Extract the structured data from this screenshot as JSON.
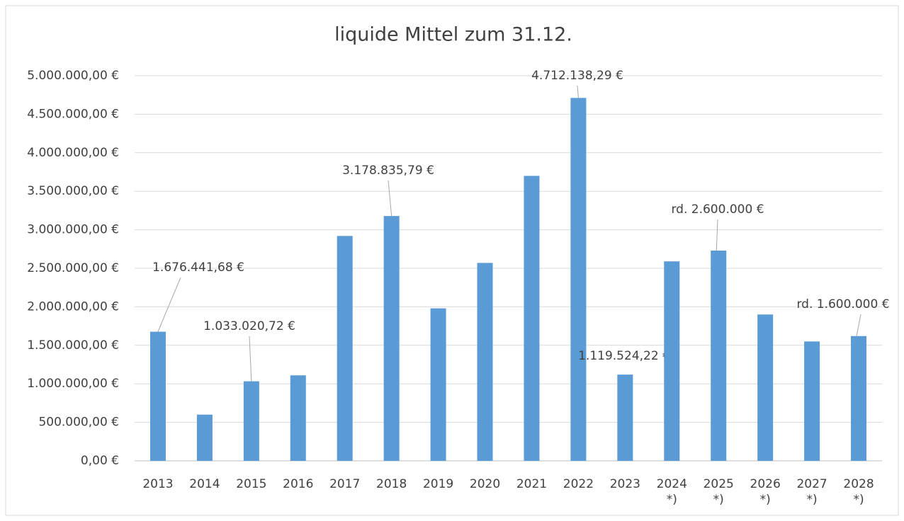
{
  "chart_data": {
    "type": "bar",
    "title": "liquide Mittel zum 31.12.",
    "categories": [
      "2013",
      "2014",
      "2015",
      "2016",
      "2017",
      "2018",
      "2019",
      "2020",
      "2021",
      "2022",
      "2023",
      "2024 *)",
      "2025 *)",
      "2026 *)",
      "2027 *)",
      "2028 *)"
    ],
    "values": [
      1676441.68,
      600000,
      1033020.72,
      1110000,
      2920000,
      3178835.79,
      1980000,
      2570000,
      3700000,
      4712138.29,
      1119524.22,
      2590000,
      2730000,
      1900000,
      1550000,
      1620000
    ],
    "value_labels": [
      "1.676.441,68 €",
      null,
      "1.033.020,72 €",
      null,
      null,
      "3.178.835,79 €",
      null,
      null,
      null,
      "4.712.138,29 €",
      "1.119.524,22 €",
      null,
      null,
      null,
      null,
      null
    ],
    "annotations": [
      {
        "text": "rd. 2.600.000 €",
        "category": "2025 *)"
      },
      {
        "text": "rd. 1.600.000 €",
        "category": "2028 *)"
      }
    ],
    "color": "#5b9bd5",
    "ylim": [
      0,
      5000000
    ],
    "yticks": [
      {
        "value": 0,
        "label": "0,00 €"
      },
      {
        "value": 500000,
        "label": "500.000,00 €"
      },
      {
        "value": 1000000,
        "label": "1.000.000,00 €"
      },
      {
        "value": 1500000,
        "label": "1.500.000,00 €"
      },
      {
        "value": 2000000,
        "label": "2.000.000,00 €"
      },
      {
        "value": 2500000,
        "label": "2.500.000,00 €"
      },
      {
        "value": 3000000,
        "label": "3.000.000,00 €"
      },
      {
        "value": 3500000,
        "label": "3.500.000,00 €"
      },
      {
        "value": 4000000,
        "label": "4.000.000,00 €"
      },
      {
        "value": 4500000,
        "label": "4.500.000,00 €"
      },
      {
        "value": 5000000,
        "label": "5.000.000,00 €"
      }
    ],
    "grid": true
  }
}
